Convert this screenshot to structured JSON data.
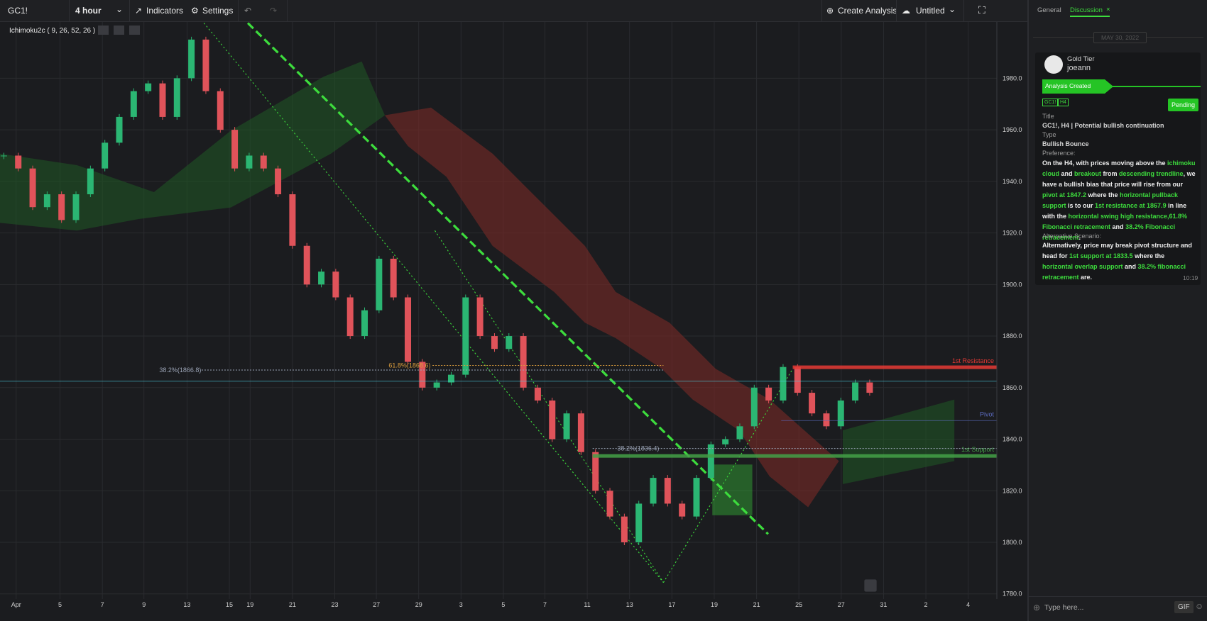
{
  "toolbar": {
    "symbol": "GC1!",
    "interval": "4 hour",
    "indicators": "Indicators",
    "settings": "Settings",
    "create": "Create Analysis",
    "layout": "Untitled"
  },
  "chart": {
    "indicator": "Ichimoku2c ( 9, 26, 52, 26 )",
    "ylim": [
      1778,
      2001
    ],
    "yticks": [
      {
        "value": 1780,
        "label": "1780.0"
      },
      {
        "value": 1800,
        "label": "1800.0"
      },
      {
        "value": 1820,
        "label": "1820.0"
      },
      {
        "value": 1840,
        "label": "1840.0"
      },
      {
        "value": 1860,
        "label": "1860.0"
      },
      {
        "value": 1880,
        "label": "1880.0"
      },
      {
        "value": 1900,
        "label": "1900.0"
      },
      {
        "value": 1920,
        "label": "1920.0"
      },
      {
        "value": 1940,
        "label": "1940.0"
      },
      {
        "value": 1960,
        "label": "1960.0"
      },
      {
        "value": 1980,
        "label": "1980.0"
      }
    ],
    "x_labels": [
      "Apr",
      "5",
      "7",
      "9",
      "13",
      "15",
      "19",
      "21",
      "23",
      "27",
      "29",
      "3",
      "5",
      "7",
      "11",
      "13",
      "17",
      "19",
      "21",
      "25",
      "27",
      "31",
      "2",
      "4"
    ],
    "closes": [
      1950,
      1945,
      1930,
      1935,
      1925,
      1935,
      1945,
      1955,
      1965,
      1975,
      1978,
      1965,
      1980,
      1995,
      1975,
      1960,
      1945,
      1950,
      1945,
      1935,
      1915,
      1900,
      1905,
      1895,
      1880,
      1890,
      1910,
      1895,
      1870,
      1860,
      1862,
      1865,
      1895,
      1880,
      1875,
      1880,
      1860,
      1855,
      1840,
      1850,
      1835,
      1820,
      1810,
      1800,
      1815,
      1825,
      1815,
      1810,
      1825,
      1838,
      1840,
      1845,
      1860,
      1855,
      1868,
      1858,
      1850,
      1845,
      1855,
      1862,
      1858
    ],
    "colors": {
      "up": "#2bb673",
      "down": "#e0535a"
    },
    "levels": [
      {
        "name": "1st Resistance",
        "value": 1867.9,
        "color": "#e53935"
      },
      {
        "value": 1862.5,
        "color": "#4dd0e1"
      },
      {
        "name": "Pivot",
        "value": 1847.2,
        "color": "#5c6bc0"
      },
      {
        "name": "1st Support",
        "value": 1833.5,
        "color": "#43a047"
      }
    ],
    "fibs": [
      {
        "value": 1866.8,
        "label": "38.2%(1866.8)",
        "color": "#9aa3b5"
      },
      {
        "value": 1868.6,
        "label": "61.8%(1868.6)",
        "color": "#d89b3c"
      },
      {
        "value": 1836.4,
        "label": "38.2%(1836.4)",
        "color": "#9aa3b5"
      }
    ]
  },
  "sidebar": {
    "tabs": [
      "General",
      "Discussion"
    ],
    "close": "×",
    "date": "MAY 30, 2022",
    "tier": "Gold Tier",
    "user": "joeann",
    "event": "Analysis Created",
    "tags": [
      "GC1!",
      "H4"
    ],
    "status": "Pending",
    "title_label": "Title",
    "title": "GC1!, H4 | Potential bullish continuation",
    "type_label": "Type",
    "type": "Bullish Bounce",
    "preference_label": "Preference:",
    "preference": [
      {
        "text": "On the H4, with prices moving above the "
      },
      {
        "text": "ichimoku cloud",
        "highlight": true
      },
      {
        "text": " and "
      },
      {
        "text": "breakout",
        "highlight": true
      },
      {
        "text": " from "
      },
      {
        "text": "descending trendline",
        "highlight": true
      },
      {
        "text": ", we have a bullish bias that price will rise from our "
      },
      {
        "text": "pivot at 1847.2",
        "highlight": true
      },
      {
        "text": " where the "
      },
      {
        "text": "horizontal pullback support",
        "highlight": true
      },
      {
        "text": " is to our "
      },
      {
        "text": "1st resistance at 1867.9",
        "highlight": true
      },
      {
        "text": " in line with the "
      },
      {
        "text": "horizontal swing high resistance,61.8% Fibonacci retracement",
        "highlight": true
      },
      {
        "text": " and "
      },
      {
        "text": "38.2% Fibonacci retracement",
        "highlight": true
      },
      {
        "text": "."
      }
    ],
    "alternative_label": "Alternative Scenario:",
    "alternative": [
      {
        "text": "Alternatively, price may break pivot structure and head for "
      },
      {
        "text": "1st support at 1833.5",
        "highlight": true
      },
      {
        "text": " where the "
      },
      {
        "text": "horizontal overlap support",
        "highlight": true
      },
      {
        "text": " and "
      },
      {
        "text": "38.2% fibonacci retracement",
        "highlight": true
      },
      {
        "text": " are."
      }
    ],
    "time": "10:19",
    "input_placeholder": "Type here...",
    "gif": "GIF"
  }
}
